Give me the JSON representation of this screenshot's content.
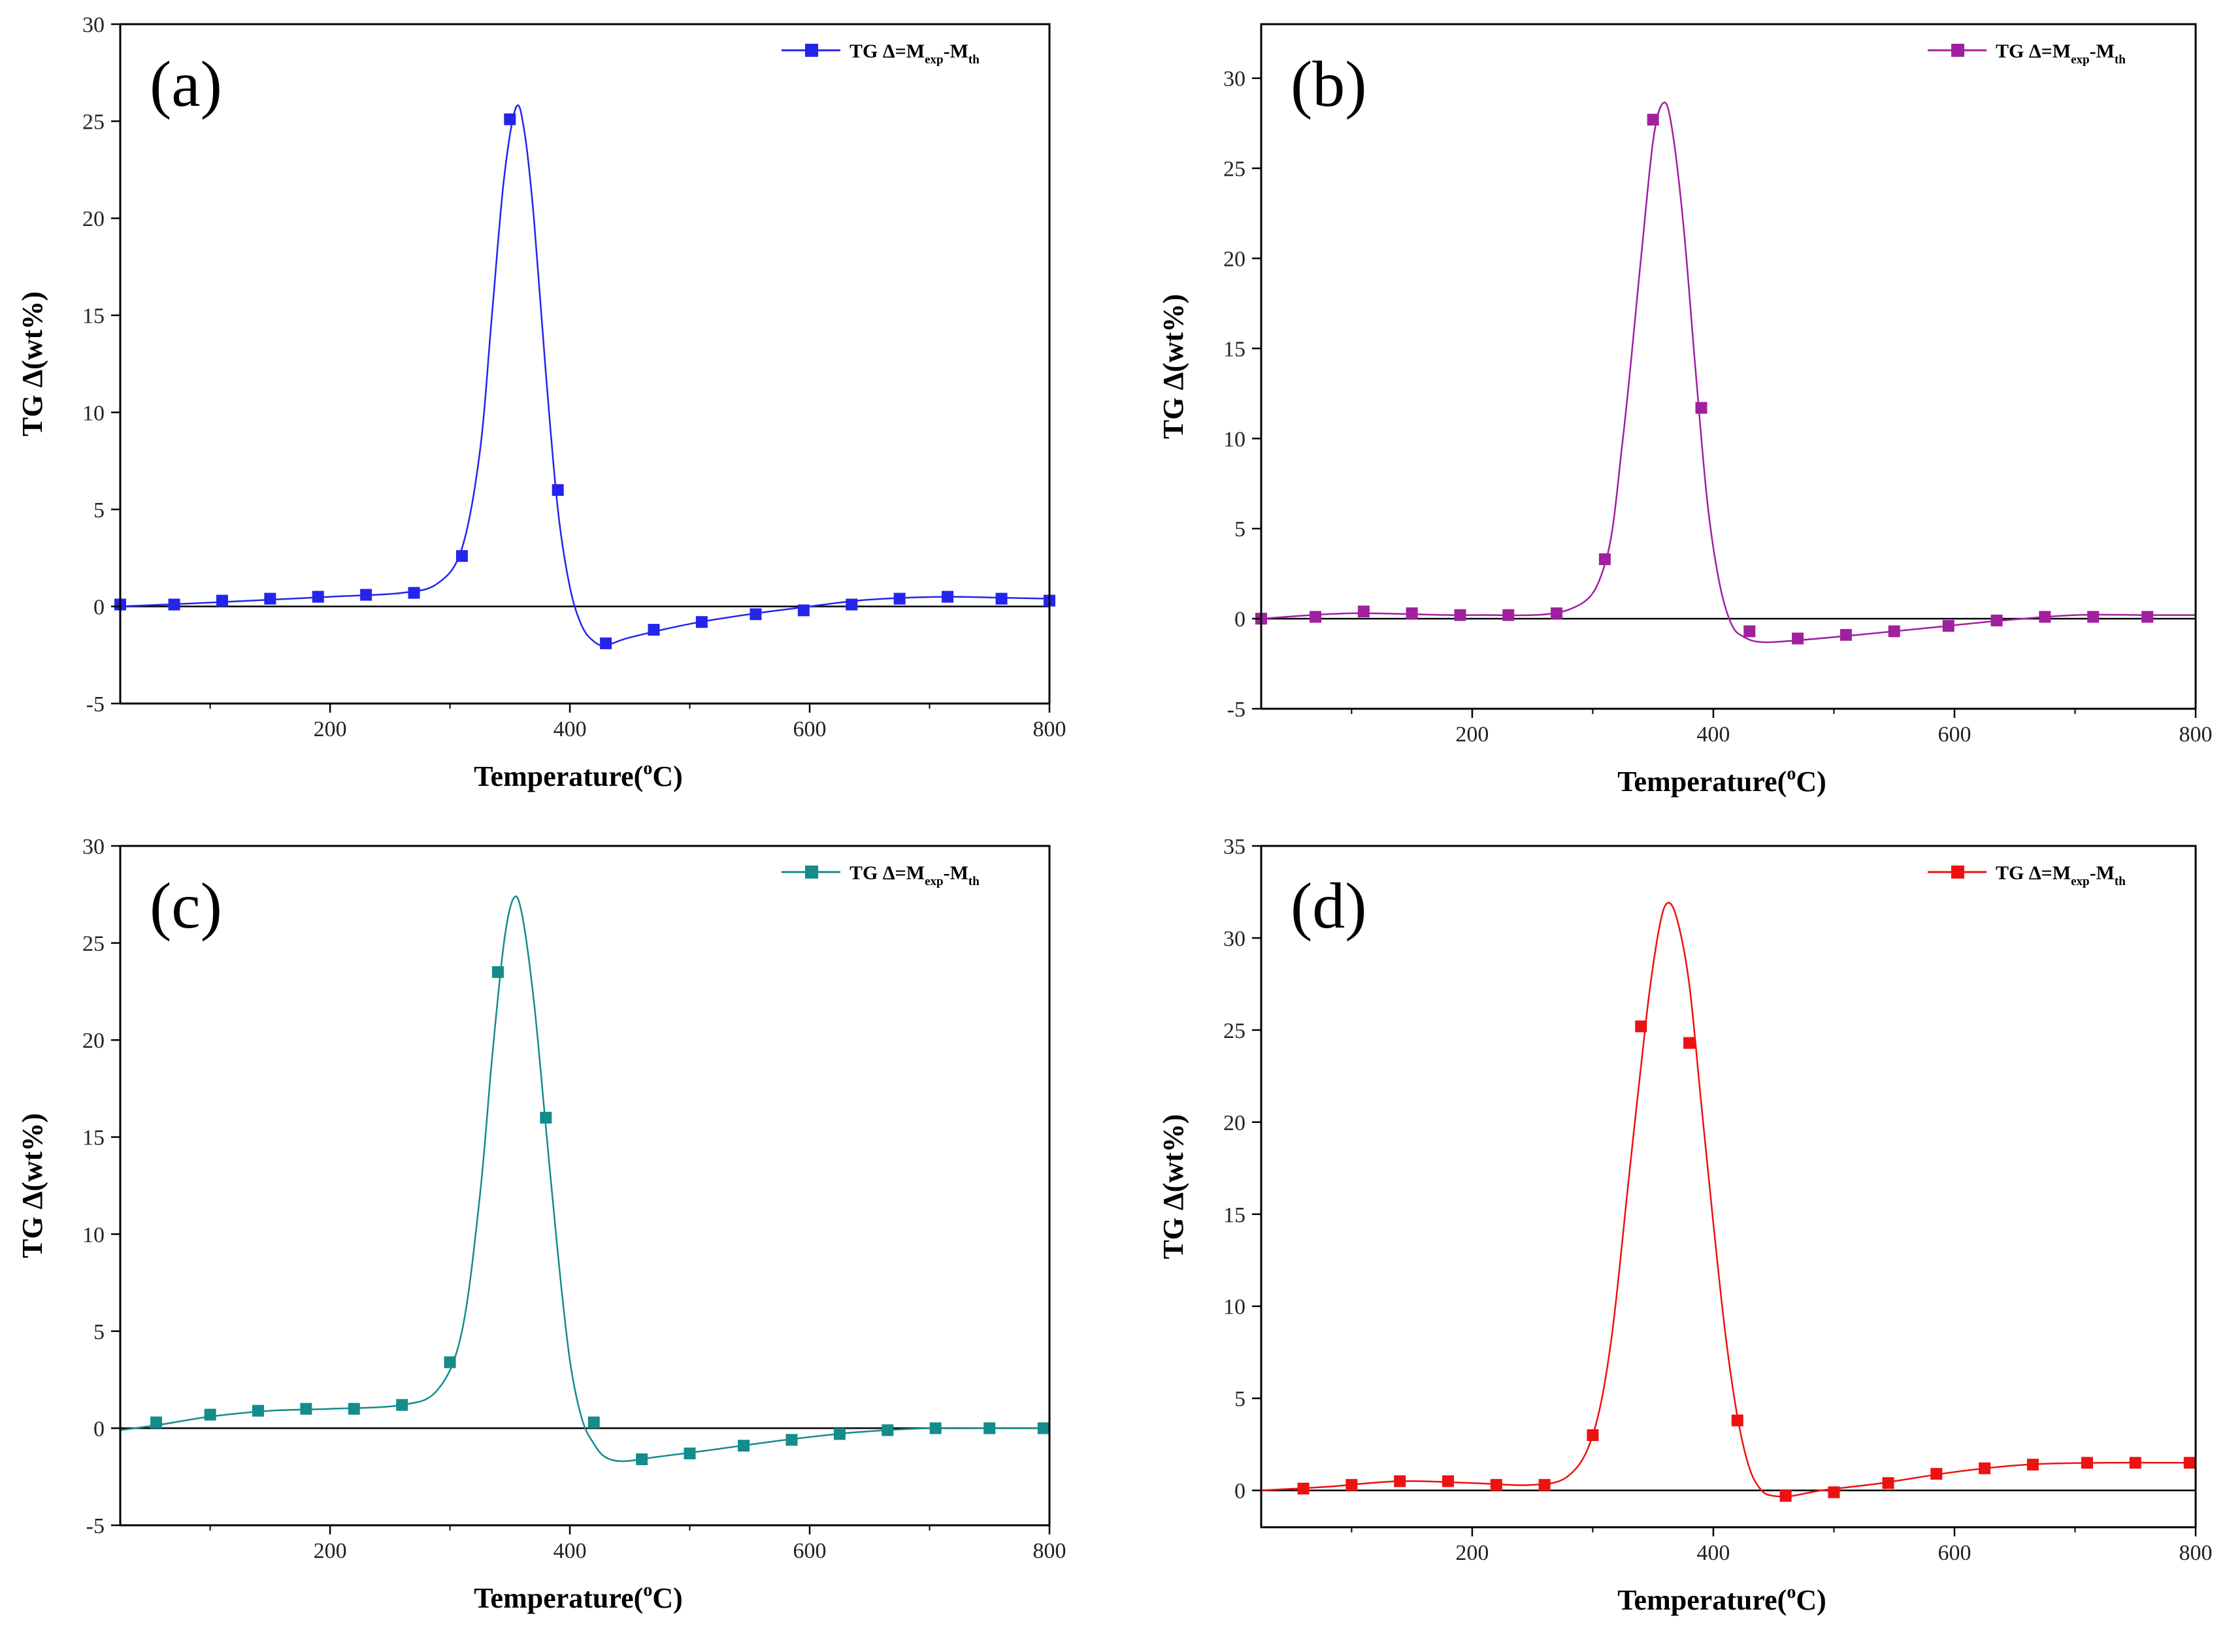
{
  "chart_data": [
    {
      "type": "line",
      "panel": "(a)",
      "color": "#2424ee",
      "xlabel": "Temperature(",
      "xlabel_sup": "o",
      "xlabel_tail": "C)",
      "ylabel": "TG Δ(wt%)",
      "xlim": [
        25,
        800
      ],
      "ylim": [
        -5,
        30
      ],
      "xticks": [
        200,
        400,
        600,
        800
      ],
      "yticks": [
        -5,
        0,
        5,
        10,
        15,
        20,
        25,
        30
      ],
      "legend": {
        "main": "TG Δ=M",
        "sub1": "exp",
        "mid": "-M",
        "sub2": "th"
      },
      "points": {
        "x": [
          25,
          70,
          110,
          150,
          190,
          230,
          270,
          310,
          350,
          390,
          430,
          470,
          510,
          555,
          595,
          635,
          675,
          715,
          760,
          800
        ],
        "y": [
          0.1,
          0.1,
          0.3,
          0.4,
          0.5,
          0.6,
          0.7,
          2.6,
          25.1,
          6.0,
          -1.9,
          -1.2,
          -0.8,
          -0.4,
          -0.2,
          0.1,
          0.4,
          0.5,
          0.4,
          0.3
        ]
      },
      "curve": {
        "x": [
          25,
          100,
          200,
          260,
          290,
          310,
          325,
          335,
          345,
          355,
          362,
          370,
          380,
          390,
          400,
          410,
          420,
          430,
          450,
          500,
          550,
          600,
          640,
          680,
          720,
          760,
          800
        ],
        "y": [
          0.0,
          0.2,
          0.5,
          0.7,
          1.2,
          3.0,
          8.0,
          15.0,
          22.0,
          25.7,
          24.5,
          20.0,
          12.0,
          5.0,
          1.0,
          -1.0,
          -1.8,
          -2.0,
          -1.6,
          -0.9,
          -0.4,
          0.0,
          0.3,
          0.45,
          0.5,
          0.45,
          0.4
        ]
      }
    },
    {
      "type": "line",
      "panel": "(b)",
      "color": "#a020a0",
      "xlabel": "Temperature(",
      "xlabel_sup": "o",
      "xlabel_tail": "C)",
      "ylabel": "TG Δ(wt%)",
      "xlim": [
        25,
        800
      ],
      "ylim": [
        -5,
        33
      ],
      "xticks": [
        200,
        400,
        600,
        800
      ],
      "yticks": [
        -5,
        0,
        5,
        10,
        15,
        20,
        25,
        30
      ],
      "legend": {
        "main": "TG Δ=M",
        "sub1": "exp",
        "mid": "-M",
        "sub2": "th"
      },
      "points": {
        "x": [
          25,
          70,
          110,
          150,
          190,
          230,
          270,
          310,
          350,
          390,
          430,
          470,
          510,
          550,
          595,
          635,
          675,
          715,
          760
        ],
        "y": [
          0.0,
          0.1,
          0.4,
          0.3,
          0.2,
          0.2,
          0.3,
          3.3,
          27.7,
          11.7,
          -0.7,
          -1.1,
          -0.9,
          -0.7,
          -0.4,
          -0.1,
          0.1,
          0.1,
          0.1
        ]
      },
      "curve": {
        "x": [
          25,
          100,
          200,
          280,
          310,
          325,
          340,
          350,
          358,
          365,
          375,
          385,
          395,
          405,
          415,
          425,
          440,
          470,
          520,
          580,
          640,
          700,
          760,
          800
        ],
        "y": [
          0.0,
          0.3,
          0.2,
          0.5,
          3.0,
          10.0,
          20.0,
          26.5,
          28.6,
          27.5,
          22.0,
          14.0,
          6.5,
          2.0,
          -0.3,
          -1.0,
          -1.3,
          -1.2,
          -0.9,
          -0.5,
          -0.1,
          0.2,
          0.2,
          0.2
        ]
      }
    },
    {
      "type": "line",
      "panel": "(c)",
      "color": "#148c8c",
      "xlabel": "Temperature(",
      "xlabel_sup": "o",
      "xlabel_tail": "C)",
      "ylabel": "TG Δ(wt%)",
      "xlim": [
        25,
        800
      ],
      "ylim": [
        -5,
        30
      ],
      "xticks": [
        200,
        400,
        600,
        800
      ],
      "yticks": [
        -5,
        0,
        5,
        10,
        15,
        20,
        25,
        30
      ],
      "legend": {
        "main": "TG Δ=M",
        "sub1": "exp",
        "mid": "-M",
        "sub2": "th"
      },
      "points": {
        "x": [
          55,
          100,
          140,
          180,
          220,
          260,
          300,
          340,
          380,
          420,
          460,
          500,
          545,
          585,
          625,
          665,
          705,
          750,
          795
        ],
        "y": [
          0.3,
          0.7,
          0.9,
          1.0,
          1.0,
          1.2,
          3.4,
          23.5,
          16.0,
          0.3,
          -1.6,
          -1.3,
          -0.9,
          -0.6,
          -0.3,
          -0.1,
          0.0,
          0.0,
          0.0
        ]
      },
      "curve": {
        "x": [
          25,
          60,
          100,
          150,
          200,
          260,
          290,
          310,
          325,
          335,
          345,
          353,
          360,
          370,
          380,
          390,
          400,
          410,
          420,
          430,
          445,
          470,
          520,
          580,
          640,
          700,
          760,
          800
        ],
        "y": [
          -0.1,
          0.2,
          0.6,
          0.9,
          1.0,
          1.2,
          2.0,
          5.0,
          12.0,
          19.0,
          25.0,
          27.3,
          26.5,
          22.0,
          15.5,
          9.0,
          3.5,
          0.5,
          -0.8,
          -1.5,
          -1.7,
          -1.5,
          -1.1,
          -0.6,
          -0.2,
          0.0,
          0.0,
          0.0
        ]
      }
    },
    {
      "type": "line",
      "panel": "(d)",
      "color": "#ee1111",
      "xlabel": "Temperature(",
      "xlabel_sup": "o",
      "xlabel_tail": "C)",
      "ylabel": "TG Δ(wt%)",
      "xlim": [
        25,
        800
      ],
      "ylim": [
        -2,
        35
      ],
      "xticks": [
        200,
        400,
        600,
        800
      ],
      "yticks": [
        0,
        5,
        10,
        15,
        20,
        25,
        30,
        35
      ],
      "legend": {
        "main": "TG Δ=M",
        "sub1": "exp",
        "mid": "-M",
        "sub2": "th"
      },
      "points": {
        "x": [
          60,
          100,
          140,
          180,
          220,
          260,
          300,
          340,
          380,
          420,
          460,
          500,
          545,
          585,
          625,
          665,
          710,
          750,
          795
        ],
        "y": [
          0.1,
          0.3,
          0.5,
          0.5,
          0.3,
          0.3,
          3.0,
          25.2,
          24.3,
          3.8,
          -0.3,
          -0.1,
          0.4,
          0.9,
          1.2,
          1.4,
          1.5,
          1.5,
          1.5
        ]
      },
      "curve": {
        "x": [
          25,
          80,
          140,
          200,
          250,
          280,
          300,
          315,
          330,
          345,
          355,
          362,
          370,
          380,
          390,
          400,
          410,
          420,
          430,
          440,
          450,
          465,
          490,
          540,
          600,
          660,
          720,
          800
        ],
        "y": [
          0.0,
          0.2,
          0.5,
          0.4,
          0.3,
          0.8,
          3.0,
          8.0,
          17.0,
          26.0,
          30.5,
          31.9,
          31.0,
          27.5,
          21.0,
          14.5,
          8.5,
          4.0,
          1.2,
          0.0,
          -0.3,
          -0.3,
          0.0,
          0.4,
          1.0,
          1.4,
          1.5,
          1.5
        ]
      }
    }
  ]
}
